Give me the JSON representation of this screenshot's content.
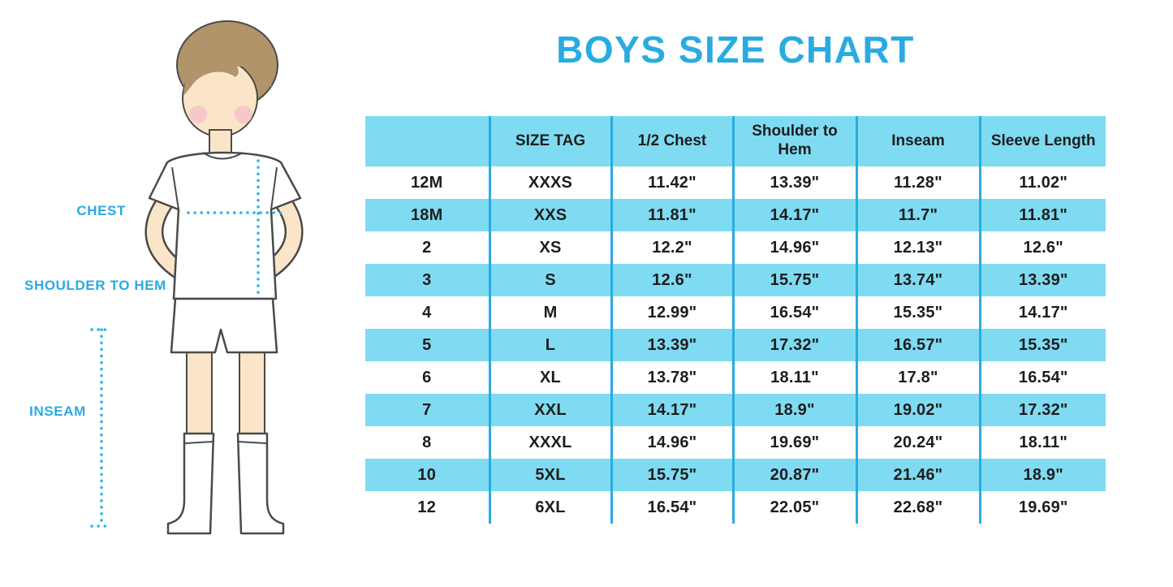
{
  "page": {
    "title": "BOYS SIZE CHART"
  },
  "colors": {
    "accent": "#29ABE2",
    "band": "#7FDBF2",
    "grid_line": "#29ABE2",
    "text_dark": "#1d1d1d"
  },
  "figure_labels": {
    "chest": "CHEST",
    "shoulder_to_hem": "SHOULDER TO HEM",
    "inseam": "INSEAM"
  },
  "chart_data": {
    "type": "table",
    "title": "BOYS SIZE CHART",
    "columns": [
      "",
      "SIZE TAG",
      "1/2 Chest",
      "Shoulder to Hem",
      "Inseam",
      "Sleeve Length"
    ],
    "rows": [
      [
        "12M",
        "XXXS",
        "11.42\"",
        "13.39\"",
        "11.28\"",
        "11.02\""
      ],
      [
        "18M",
        "XXS",
        "11.81\"",
        "14.17\"",
        "11.7\"",
        "11.81\""
      ],
      [
        "2",
        "XS",
        "12.2\"",
        "14.96\"",
        "12.13\"",
        "12.6\""
      ],
      [
        "3",
        "S",
        "12.6\"",
        "15.75\"",
        "13.74\"",
        "13.39\""
      ],
      [
        "4",
        "M",
        "12.99\"",
        "16.54\"",
        "15.35\"",
        "14.17\""
      ],
      [
        "5",
        "L",
        "13.39\"",
        "17.32\"",
        "16.57\"",
        "15.35\""
      ],
      [
        "6",
        "XL",
        "13.78\"",
        "18.11\"",
        "17.8\"",
        "16.54\""
      ],
      [
        "7",
        "XXL",
        "14.17\"",
        "18.9\"",
        "19.02\"",
        "17.32\""
      ],
      [
        "8",
        "XXXL",
        "14.96\"",
        "19.69\"",
        "20.24\"",
        "18.11\""
      ],
      [
        "10",
        "5XL",
        "15.75\"",
        "20.87\"",
        "21.46\"",
        "18.9\""
      ],
      [
        "12",
        "6XL",
        "16.54\"",
        "22.05\"",
        "22.68\"",
        "19.69\""
      ]
    ]
  }
}
